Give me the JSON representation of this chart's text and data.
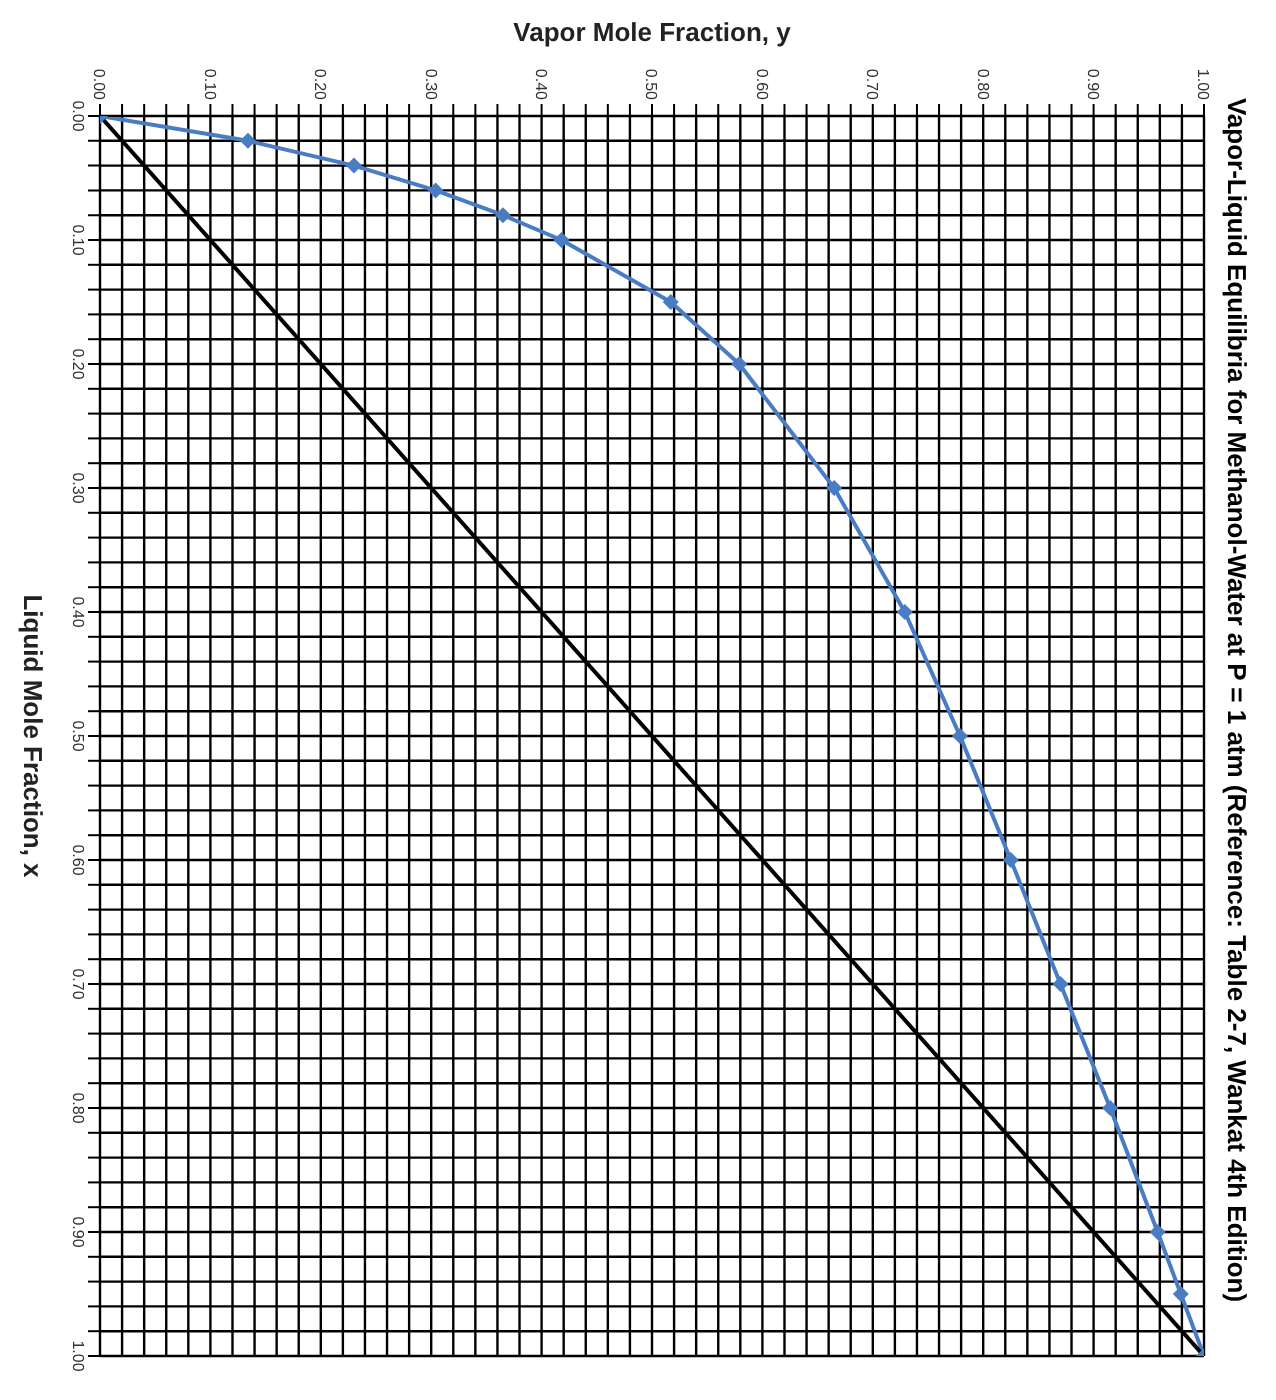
{
  "chart_data": {
    "type": "line",
    "title": "Vapor-Liquid Equilibria for Methanol-Water at P = 1 atm (Reference: Table 2-7, Wankat 4th Edition)",
    "xlabel": "Vapor Mole Fraction, y",
    "ylabel": "Liquid Mole Fraction, x",
    "series": [
      {
        "x": [
          0,
          0.134,
          0.23,
          0.304,
          0.365,
          0.418,
          0.517,
          0.579,
          0.665,
          0.729,
          0.779,
          0.825,
          0.87,
          0.915,
          0.958,
          0.979,
          1.0
        ],
        "values": [
          0,
          0.02,
          0.04,
          0.06,
          0.08,
          0.1,
          0.15,
          0.2,
          0.3,
          0.4,
          0.5,
          0.6,
          0.7,
          0.8,
          0.9,
          0.95,
          1.0
        ],
        "color": "#4a7cc4",
        "marker": "diamond"
      },
      {
        "x": [
          0,
          1
        ],
        "values": [
          0,
          1
        ],
        "color": "#000000",
        "marker": "none"
      }
    ],
    "xlim": [
      0,
      1
    ],
    "ylim": [
      1,
      0
    ],
    "xticks": [
      {
        "value": 0,
        "label": "0.00"
      },
      {
        "value": 0.02,
        "label": null
      },
      {
        "value": 0.04,
        "label": null
      },
      {
        "value": 0.06,
        "label": null
      },
      {
        "value": 0.08,
        "label": null
      },
      {
        "value": 0.1,
        "label": "0.10"
      },
      {
        "value": 0.12,
        "label": null
      },
      {
        "value": 0.14,
        "label": null
      },
      {
        "value": 0.16,
        "label": null
      },
      {
        "value": 0.18,
        "label": null
      },
      {
        "value": 0.2,
        "label": "0.20"
      },
      {
        "value": 0.22,
        "label": null
      },
      {
        "value": 0.24,
        "label": null
      },
      {
        "value": 0.26,
        "label": null
      },
      {
        "value": 0.28,
        "label": null
      },
      {
        "value": 0.3,
        "label": "0.30"
      },
      {
        "value": 0.32,
        "label": null
      },
      {
        "value": 0.34,
        "label": null
      },
      {
        "value": 0.36,
        "label": null
      },
      {
        "value": 0.38,
        "label": null
      },
      {
        "value": 0.4,
        "label": "0.40"
      },
      {
        "value": 0.42,
        "label": null
      },
      {
        "value": 0.44,
        "label": null
      },
      {
        "value": 0.46,
        "label": null
      },
      {
        "value": 0.48,
        "label": null
      },
      {
        "value": 0.5,
        "label": "0.50"
      },
      {
        "value": 0.52,
        "label": null
      },
      {
        "value": 0.54,
        "label": null
      },
      {
        "value": 0.56,
        "label": null
      },
      {
        "value": 0.58,
        "label": null
      },
      {
        "value": 0.6,
        "label": "0.60"
      },
      {
        "value": 0.62,
        "label": null
      },
      {
        "value": 0.64,
        "label": null
      },
      {
        "value": 0.66,
        "label": null
      },
      {
        "value": 0.68,
        "label": null
      },
      {
        "value": 0.7,
        "label": "0.70"
      },
      {
        "value": 0.72,
        "label": null
      },
      {
        "value": 0.74,
        "label": null
      },
      {
        "value": 0.76,
        "label": null
      },
      {
        "value": 0.78,
        "label": null
      },
      {
        "value": 0.8,
        "label": "0.80"
      },
      {
        "value": 0.82,
        "label": null
      },
      {
        "value": 0.84,
        "label": null
      },
      {
        "value": 0.86,
        "label": null
      },
      {
        "value": 0.88,
        "label": null
      },
      {
        "value": 0.9,
        "label": "0.90"
      },
      {
        "value": 0.92,
        "label": null
      },
      {
        "value": 0.94,
        "label": null
      },
      {
        "value": 0.96,
        "label": null
      },
      {
        "value": 0.98,
        "label": null
      },
      {
        "value": 1,
        "label": "1.00"
      }
    ],
    "yticks": [
      {
        "value": 0,
        "label": "0.00"
      },
      {
        "value": 0.02,
        "label": null
      },
      {
        "value": 0.04,
        "label": null
      },
      {
        "value": 0.06,
        "label": null
      },
      {
        "value": 0.08,
        "label": null
      },
      {
        "value": 0.1,
        "label": "0.10"
      },
      {
        "value": 0.12,
        "label": null
      },
      {
        "value": 0.14,
        "label": null
      },
      {
        "value": 0.16,
        "label": null
      },
      {
        "value": 0.18,
        "label": null
      },
      {
        "value": 0.2,
        "label": "0.20"
      },
      {
        "value": 0.22,
        "label": null
      },
      {
        "value": 0.24,
        "label": null
      },
      {
        "value": 0.26,
        "label": null
      },
      {
        "value": 0.28,
        "label": null
      },
      {
        "value": 0.3,
        "label": "0.30"
      },
      {
        "value": 0.32,
        "label": null
      },
      {
        "value": 0.34,
        "label": null
      },
      {
        "value": 0.36,
        "label": null
      },
      {
        "value": 0.38,
        "label": null
      },
      {
        "value": 0.4,
        "label": "0.40"
      },
      {
        "value": 0.42,
        "label": null
      },
      {
        "value": 0.44,
        "label": null
      },
      {
        "value": 0.46,
        "label": null
      },
      {
        "value": 0.48,
        "label": null
      },
      {
        "value": 0.5,
        "label": "0.50"
      },
      {
        "value": 0.52,
        "label": null
      },
      {
        "value": 0.54,
        "label": null
      },
      {
        "value": 0.56,
        "label": null
      },
      {
        "value": 0.58,
        "label": null
      },
      {
        "value": 0.6,
        "label": "0.60"
      },
      {
        "value": 0.62,
        "label": null
      },
      {
        "value": 0.64,
        "label": null
      },
      {
        "value": 0.66,
        "label": null
      },
      {
        "value": 0.68,
        "label": null
      },
      {
        "value": 0.7,
        "label": "0.70"
      },
      {
        "value": 0.72,
        "label": null
      },
      {
        "value": 0.74,
        "label": null
      },
      {
        "value": 0.76,
        "label": null
      },
      {
        "value": 0.78,
        "label": null
      },
      {
        "value": 0.8,
        "label": "0.80"
      },
      {
        "value": 0.82,
        "label": null
      },
      {
        "value": 0.84,
        "label": null
      },
      {
        "value": 0.86,
        "label": null
      },
      {
        "value": 0.88,
        "label": null
      },
      {
        "value": 0.9,
        "label": "0.90"
      },
      {
        "value": 0.92,
        "label": null
      },
      {
        "value": 0.94,
        "label": null
      },
      {
        "value": 0.96,
        "label": null
      },
      {
        "value": 0.98,
        "label": null
      },
      {
        "value": 1,
        "label": "1.00"
      }
    ],
    "grid": true
  }
}
